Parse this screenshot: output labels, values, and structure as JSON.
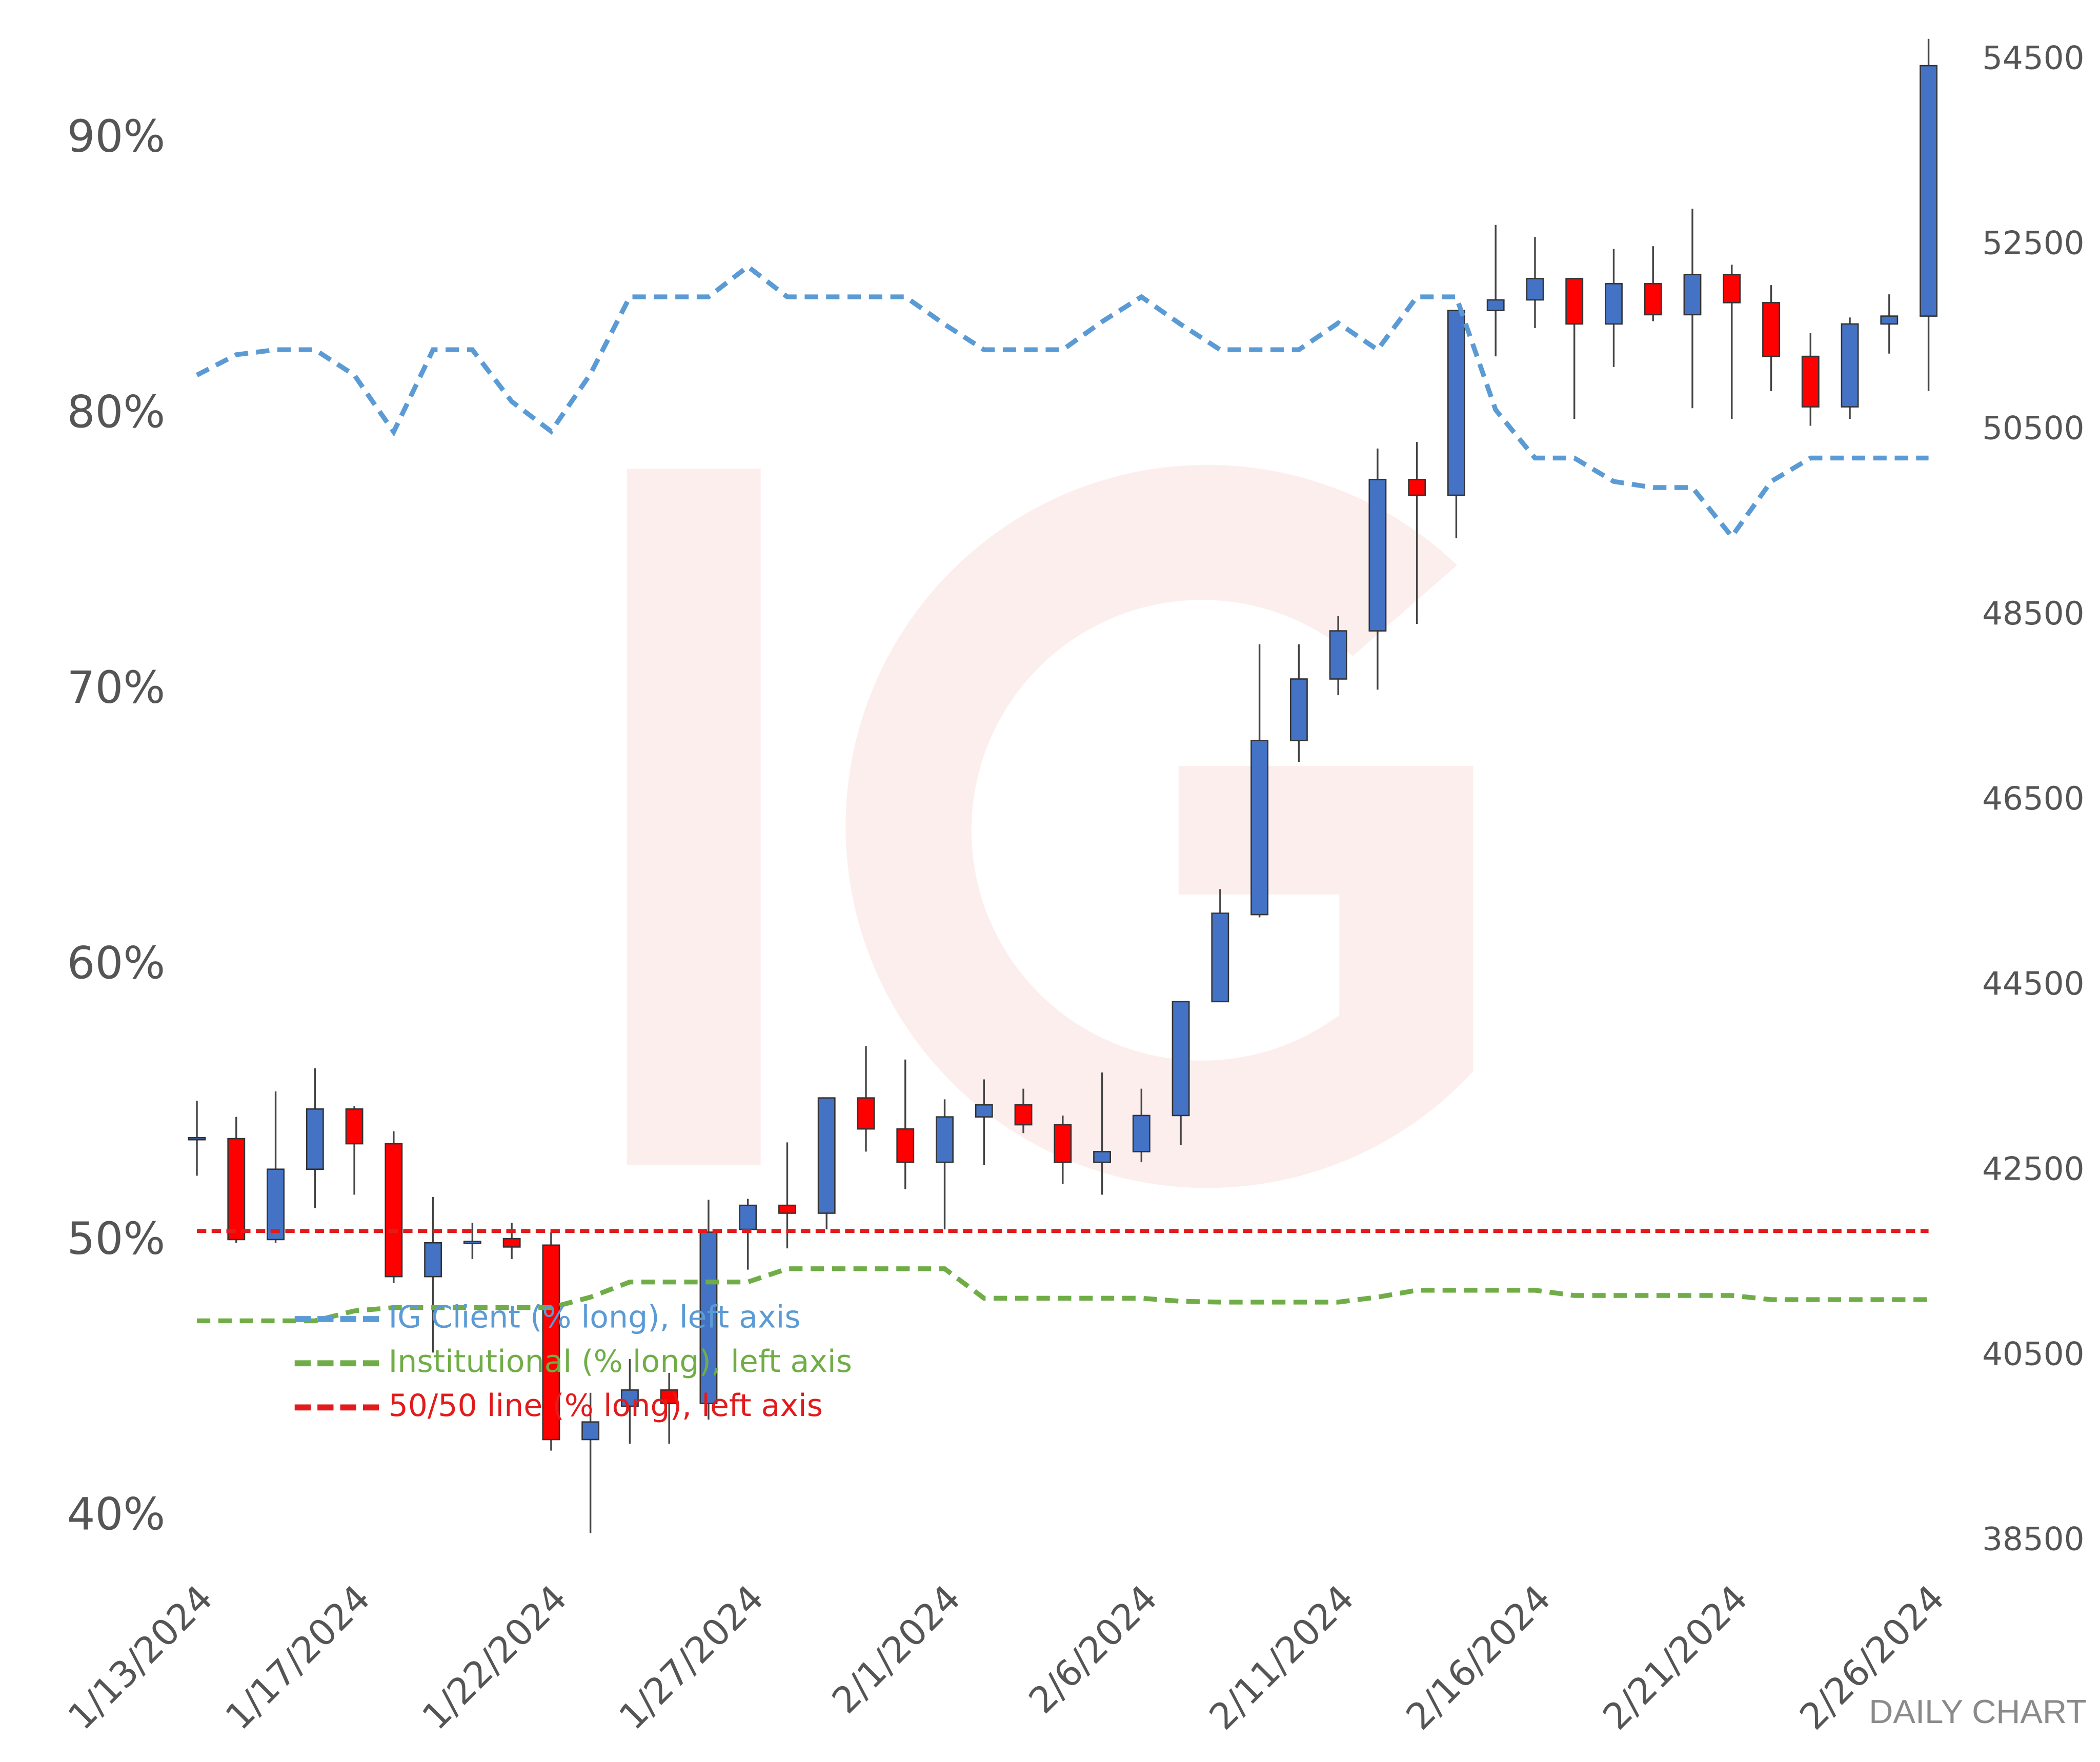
{
  "chart_data": {
    "type": "candlestick",
    "annotation": "DAILY CHART",
    "x": [
      "1/13/2024",
      "1/14/2024",
      "1/15/2024",
      "1/16/2024",
      "1/17/2024",
      "1/18/2024",
      "1/19/2024",
      "1/20/2024",
      "1/21/2024",
      "1/22/2024",
      "1/23/2024",
      "1/24/2024",
      "1/25/2024",
      "1/26/2024",
      "1/27/2024",
      "1/28/2024",
      "1/29/2024",
      "1/30/2024",
      "1/31/2024",
      "2/1/2024",
      "2/2/2024",
      "2/3/2024",
      "2/4/2024",
      "2/5/2024",
      "2/6/2024",
      "2/7/2024",
      "2/8/2024",
      "2/9/2024",
      "2/10/2024",
      "2/11/2024",
      "2/12/2024",
      "2/13/2024",
      "2/14/2024",
      "2/15/2024",
      "2/16/2024",
      "2/17/2024",
      "2/18/2024",
      "2/19/2024",
      "2/20/2024",
      "2/21/2024",
      "2/22/2024",
      "2/23/2024",
      "2/24/2024",
      "2/25/2024",
      "2/26/2024"
    ],
    "xticks": [
      "1/13/2024",
      "1/17/2024",
      "1/22/2024",
      "1/27/2024",
      "2/1/2024",
      "2/6/2024",
      "2/11/2024",
      "2/16/2024",
      "2/21/2024",
      "2/26/2024"
    ],
    "ylim": [
      38.7,
      94.1
    ],
    "yticks": [
      {
        "value": 40,
        "label": "40%"
      },
      {
        "value": 50,
        "label": "50%"
      },
      {
        "value": 60,
        "label": "60%"
      },
      {
        "value": 70,
        "label": "70%"
      },
      {
        "value": 80,
        "label": "80%"
      },
      {
        "value": 90,
        "label": "90%"
      }
    ],
    "y2lim": [
      38370,
      54860
    ],
    "y2ticks": [
      38500,
      40500,
      42500,
      44500,
      46500,
      48500,
      50500,
      52500,
      54500
    ],
    "candles": {
      "axis": "y2",
      "up_color": "#4472c4",
      "down_color": "#ff0000",
      "open": [
        42850,
        42850,
        41760,
        42520,
        43170,
        42795,
        41360,
        41720,
        41770,
        41700,
        39600,
        39960,
        40135,
        39990,
        41870,
        42130,
        42045,
        43290,
        42955,
        42595,
        43085,
        43215,
        43000,
        42595,
        42710,
        43100,
        44330,
        45270,
        47150,
        47815,
        48335,
        49970,
        49800,
        51795,
        51910,
        52140,
        51650,
        52085,
        51750,
        52185,
        51880,
        51300,
        50755,
        51650,
        51735
      ],
      "high": [
        43260,
        43085,
        43360,
        43610,
        43200,
        42930,
        42220,
        41940,
        41940,
        41840,
        40105,
        40470,
        40320,
        42190,
        42200,
        42810,
        43290,
        43850,
        43705,
        43275,
        43490,
        43390,
        43100,
        43565,
        43390,
        44330,
        45545,
        48190,
        48190,
        48495,
        50305,
        50375,
        51795,
        52720,
        52590,
        52140,
        52460,
        52490,
        52895,
        52290,
        52070,
        51550,
        51720,
        51970,
        54730
      ],
      "low": [
        42450,
        41725,
        41725,
        42100,
        42245,
        41290,
        40540,
        41550,
        41550,
        39480,
        38590,
        39555,
        39555,
        39815,
        41435,
        41665,
        41870,
        42710,
        42305,
        41870,
        42565,
        42910,
        42360,
        42245,
        42595,
        42780,
        44330,
        45240,
        46920,
        47640,
        47700,
        48410,
        49335,
        51300,
        51605,
        50625,
        51185,
        51680,
        50740,
        50625,
        50925,
        50550,
        50625,
        51330,
        50925
      ],
      "close": [
        42860,
        41760,
        42520,
        43170,
        42795,
        41360,
        41725,
        41740,
        41680,
        39600,
        39790,
        40135,
        39990,
        41840,
        42130,
        42045,
        43290,
        42955,
        42595,
        43085,
        43215,
        43000,
        42595,
        42710,
        43100,
        44330,
        45285,
        47150,
        47815,
        48335,
        49970,
        49800,
        51795,
        51910,
        52140,
        51650,
        52085,
        51750,
        52185,
        51880,
        51300,
        50755,
        51650,
        51735,
        54440
      ]
    },
    "legend": "lower left",
    "series": [
      {
        "name": "IG Client (% long), left axis",
        "color": "#5b9bd5",
        "axis": "y",
        "values": [
          81.46,
          82.2,
          82.38,
          82.38,
          81.46,
          79.4,
          82.38,
          82.38,
          80.5,
          79.42,
          81.5,
          84.3,
          84.3,
          84.3,
          85.4,
          84.3,
          84.3,
          84.3,
          84.3,
          83.3,
          82.38,
          82.38,
          82.38,
          83.4,
          84.3,
          83.3,
          82.38,
          82.38,
          82.38,
          83.35,
          82.38,
          84.3,
          84.3,
          80.2,
          78.45,
          78.45,
          77.6,
          77.38,
          77.38,
          75.6,
          77.6,
          78.45,
          78.45,
          78.45,
          78.45
        ]
      },
      {
        "name": "Institutional (% long), left axis",
        "color": "#70ad47",
        "axis": "y",
        "values": [
          47.14,
          47.14,
          47.14,
          47.14,
          47.5,
          47.62,
          47.62,
          47.62,
          47.62,
          47.62,
          48.0,
          48.55,
          48.55,
          48.55,
          48.55,
          49.03,
          49.03,
          49.03,
          49.03,
          49.03,
          47.96,
          47.96,
          47.96,
          47.96,
          47.96,
          47.85,
          47.82,
          47.82,
          47.82,
          47.82,
          48.0,
          48.25,
          48.25,
          48.25,
          48.25,
          48.06,
          48.06,
          48.06,
          48.06,
          48.06,
          47.91,
          47.91,
          47.91,
          47.91,
          47.91
        ]
      },
      {
        "name": "50/50 line (% long), left axis",
        "color": "#e31a1c",
        "axis": "y",
        "values": [
          50.4,
          50.4,
          50.4,
          50.4,
          50.4,
          50.4,
          50.4,
          50.4,
          50.4,
          50.4,
          50.4,
          50.4,
          50.4,
          50.4,
          50.4,
          50.4,
          50.4,
          50.4,
          50.4,
          50.4,
          50.4,
          50.4,
          50.4,
          50.4,
          50.4,
          50.4,
          50.4,
          50.4,
          50.4,
          50.4,
          50.4,
          50.4,
          50.4,
          50.4,
          50.4,
          50.4,
          50.4,
          50.4,
          50.4,
          50.4,
          50.4,
          50.4,
          50.4,
          50.4,
          50.4
        ]
      }
    ]
  }
}
